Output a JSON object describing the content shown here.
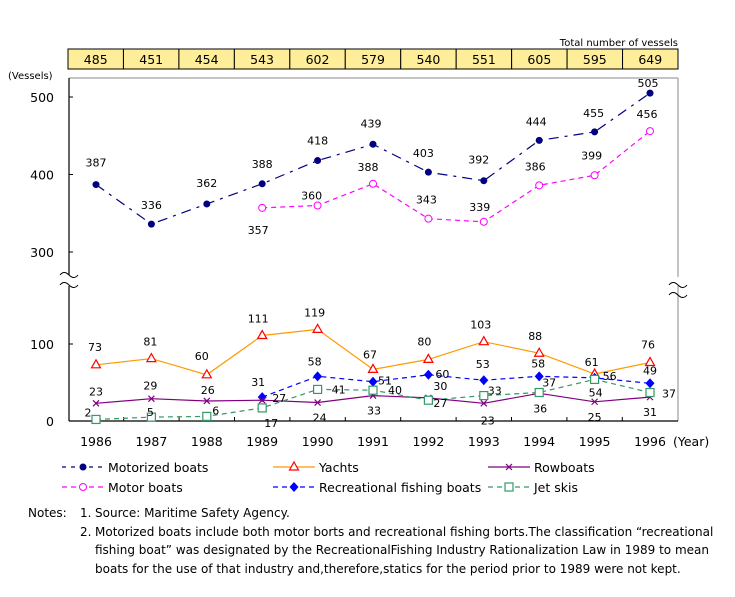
{
  "chart_data": {
    "type": "line",
    "title": "",
    "xlabel": "(Year)",
    "ylabel": "(Vessels)",
    "x": [
      1986,
      1987,
      1988,
      1989,
      1990,
      1991,
      1992,
      1993,
      1994,
      1995,
      1996
    ],
    "x_tick_labels": [
      "1986",
      "1987",
      "1988",
      "1989",
      "1990",
      "1991",
      "1992",
      "1993",
      "1994",
      "1995",
      "1996"
    ],
    "y_axis_broken": true,
    "y_segments": [
      {
        "range": [
          0,
          120
        ],
        "ticks": [
          0,
          100
        ],
        "tick_labels": [
          "0",
          "100"
        ]
      },
      {
        "range": [
          270,
          525
        ],
        "ticks": [
          300,
          400,
          500
        ],
        "tick_labels": [
          "300",
          "400",
          "500"
        ]
      }
    ],
    "grid": false,
    "legend_position": "bottom",
    "totals_header": {
      "label": "Total number of vessels",
      "values": [
        485,
        451,
        454,
        543,
        602,
        579,
        540,
        551,
        605,
        595,
        649
      ],
      "fill_color": "#FFEE99"
    },
    "series": [
      {
        "key": "motorized",
        "name": "Motorized boats",
        "color": "#000080",
        "marker": "filled-circle",
        "line": "dash-dot",
        "values": [
          387,
          336,
          362,
          388,
          418,
          439,
          403,
          392,
          444,
          455,
          505
        ],
        "labels": [
          "387",
          "336",
          "362",
          "388",
          "418",
          "439",
          "403",
          "392",
          "444",
          "455",
          "505"
        ]
      },
      {
        "key": "motor",
        "name": "Motor boats",
        "color": "#FF00FF",
        "marker": "open-circle",
        "line": "dashed",
        "values": [
          null,
          null,
          null,
          357,
          360,
          388,
          343,
          339,
          386,
          399,
          456
        ],
        "labels": [
          null,
          null,
          null,
          "357",
          "360",
          "388",
          "343",
          "339",
          "386",
          "399",
          "456"
        ]
      },
      {
        "key": "yachts",
        "name": "Yachts",
        "color": "#FF9900",
        "marker_color": "#FF0000",
        "marker": "open-triangle",
        "line": "solid",
        "values": [
          73,
          81,
          60,
          111,
          119,
          67,
          80,
          103,
          88,
          61,
          76
        ],
        "labels": [
          "73",
          "81",
          "60",
          "111",
          "119",
          "67",
          "80",
          "103",
          "88",
          "61",
          "76"
        ]
      },
      {
        "key": "fishing",
        "name": "Recreational fishing boats",
        "color": "#0000FF",
        "marker": "filled-diamond",
        "line": "dashed",
        "values": [
          null,
          null,
          null,
          31,
          58,
          51,
          60,
          53,
          58,
          56,
          49
        ],
        "labels": [
          null,
          null,
          null,
          "31",
          "58",
          "51",
          "60",
          "53",
          "58",
          "56",
          "49"
        ]
      },
      {
        "key": "rowboats",
        "name": "Rowboats",
        "color": "#800080",
        "marker": "x",
        "line": "solid",
        "values": [
          23,
          29,
          26,
          27,
          24,
          33,
          30,
          23,
          36,
          25,
          31
        ],
        "labels": [
          "23",
          "29",
          "26",
          "27",
          "24",
          "33",
          "30",
          "23",
          "36",
          "25",
          "31"
        ]
      },
      {
        "key": "jetskis",
        "name": "Jet skis",
        "color": "#339966",
        "marker": "open-square",
        "line": "dashed",
        "values": [
          2,
          5,
          6,
          17,
          41,
          40,
          27,
          33,
          37,
          54,
          37
        ],
        "labels": [
          "2",
          "5",
          "6",
          "17",
          "41",
          "40",
          "27",
          "33",
          "37",
          "54",
          "37"
        ]
      }
    ]
  },
  "notes": {
    "label": "Notes:",
    "items": [
      {
        "num": "1.",
        "text": "Source: Maritime Safety Agency."
      },
      {
        "num": "2.",
        "text": "Motorized boats include both motor borts and recreational fishing borts.The classification “recreational fishing boat” was designated by the RecreationalFishing Industry Rationalization Law in 1989 to mean boats for the use of that industry and,therefore,statics for the period prior to 1989 were not kept."
      }
    ]
  }
}
